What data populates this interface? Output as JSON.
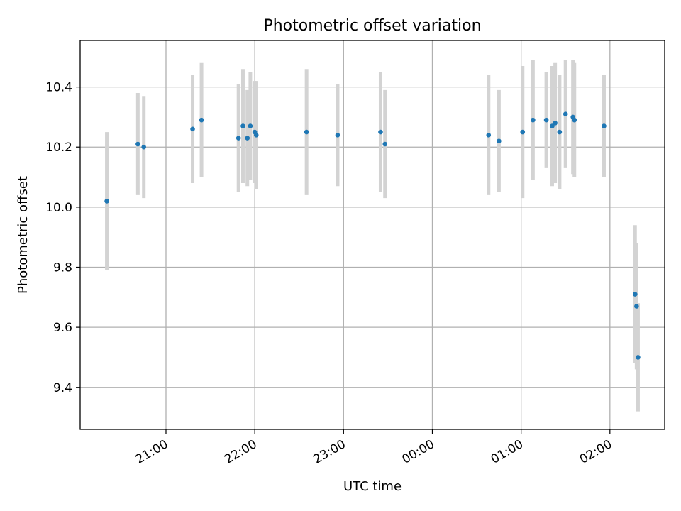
{
  "chart_data": {
    "type": "scatter",
    "title": "Photometric offset variation",
    "xlabel": "UTC time",
    "ylabel": "Photometric offset",
    "grid": true,
    "xlim": [
      "20:02",
      "02:37"
    ],
    "ylim": [
      9.26,
      10.555
    ],
    "x_ticks": [
      "21:00",
      "22:00",
      "23:00",
      "00:00",
      "01:00",
      "02:00"
    ],
    "y_ticks": [
      9.4,
      9.6,
      9.8,
      10.0,
      10.2,
      10.4
    ],
    "colors": {
      "point": "#1f77b4",
      "errorbar": "#d3d3d3"
    },
    "points": [
      {
        "x": "20:20",
        "y": 10.02,
        "err": 0.23
      },
      {
        "x": "20:41",
        "y": 10.21,
        "err": 0.17
      },
      {
        "x": "20:45",
        "y": 10.2,
        "err": 0.17
      },
      {
        "x": "21:18",
        "y": 10.26,
        "err": 0.18
      },
      {
        "x": "21:24",
        "y": 10.29,
        "err": 0.19
      },
      {
        "x": "21:49",
        "y": 10.23,
        "err": 0.18
      },
      {
        "x": "21:52",
        "y": 10.27,
        "err": 0.19
      },
      {
        "x": "21:55",
        "y": 10.23,
        "err": 0.16
      },
      {
        "x": "21:57",
        "y": 10.27,
        "err": 0.18
      },
      {
        "x": "22:00",
        "y": 10.25,
        "err": 0.17
      },
      {
        "x": "22:01",
        "y": 10.24,
        "err": 0.18
      },
      {
        "x": "22:35",
        "y": 10.25,
        "err": 0.21
      },
      {
        "x": "22:56",
        "y": 10.24,
        "err": 0.17
      },
      {
        "x": "23:25",
        "y": 10.25,
        "err": 0.2
      },
      {
        "x": "23:28",
        "y": 10.21,
        "err": 0.18
      },
      {
        "x": "00:38",
        "y": 10.24,
        "err": 0.2
      },
      {
        "x": "00:45",
        "y": 10.22,
        "err": 0.17
      },
      {
        "x": "01:01",
        "y": 10.25,
        "err": 0.22
      },
      {
        "x": "01:08",
        "y": 10.29,
        "err": 0.2
      },
      {
        "x": "01:17",
        "y": 10.29,
        "err": 0.16
      },
      {
        "x": "01:21",
        "y": 10.27,
        "err": 0.2
      },
      {
        "x": "01:23",
        "y": 10.28,
        "err": 0.2
      },
      {
        "x": "01:26",
        "y": 10.25,
        "err": 0.19
      },
      {
        "x": "01:30",
        "y": 10.31,
        "err": 0.18
      },
      {
        "x": "01:35",
        "y": 10.3,
        "err": 0.19
      },
      {
        "x": "01:36",
        "y": 10.29,
        "err": 0.19
      },
      {
        "x": "01:56",
        "y": 10.27,
        "err": 0.17
      },
      {
        "x": "02:17",
        "y": 9.71,
        "err": 0.23
      },
      {
        "x": "02:18",
        "y": 9.67,
        "err": 0.21
      },
      {
        "x": "02:19",
        "y": 9.5,
        "err": 0.18
      }
    ]
  }
}
